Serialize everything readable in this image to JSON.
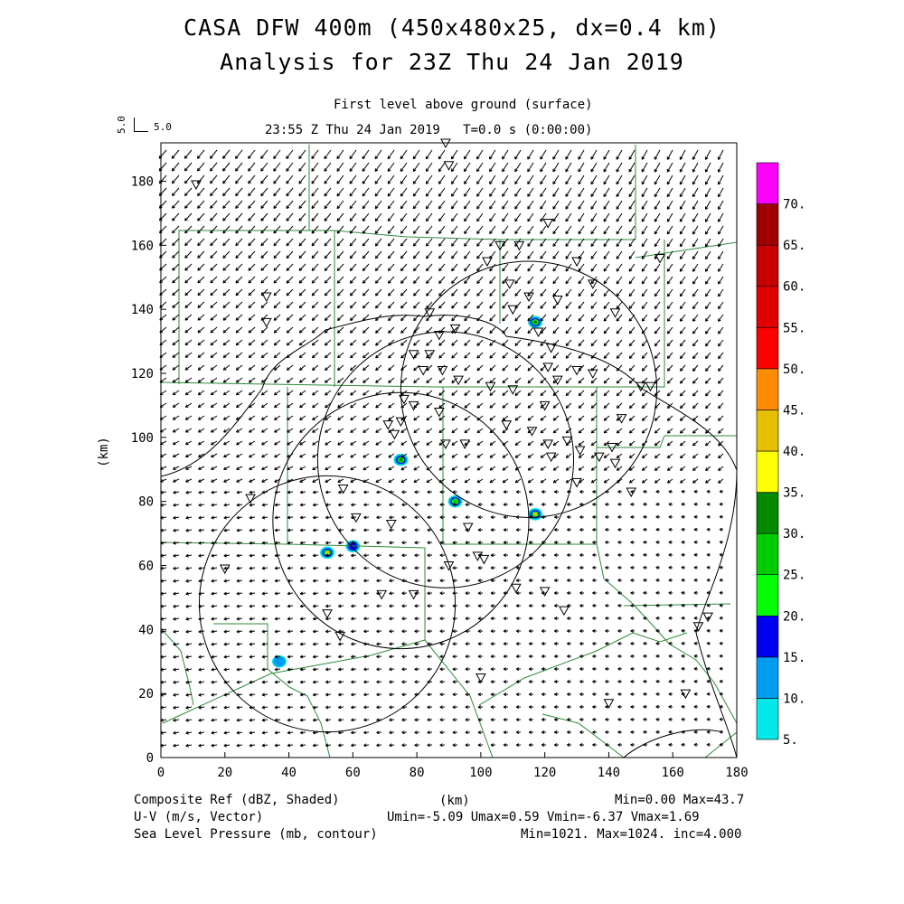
{
  "header": {
    "title_line1": "CASA DFW 400m (450x480x25, dx=0.4 km)",
    "title_line2": "Analysis for 23Z Thu 24 Jan 2019",
    "level_label": "First level above ground (surface)",
    "time_label": "23:55 Z Thu 24 Jan 2019   T=0.0 s (0:00:00)",
    "ref_vector_vert": "5.0",
    "ref_vector_horiz": "5.0"
  },
  "footer": {
    "field1": "Composite Ref (dBZ, Shaded)",
    "field1_unit": "(km)",
    "field1_stats": "Min=0.00 Max=43.7",
    "field2": "U-V (m/s, Vector)",
    "field2_stats": "Umin=-5.09 Umax=0.59 Vmin=-6.37 Vmax=1.69",
    "field3": "Sea Level Pressure (mb, contour)",
    "field3_stats": "Min=1021. Max=1024. inc=4.000"
  },
  "chart_data": {
    "type": "heatmap",
    "xlabel": "",
    "ylabel": "(km)",
    "xlim": [
      0,
      180
    ],
    "ylim": [
      0,
      192
    ],
    "x_ticks": [
      "0",
      "20",
      "40",
      "60",
      "80",
      "100",
      "120",
      "140",
      "160",
      "180"
    ],
    "y_ticks": [
      "0",
      "20",
      "40",
      "60",
      "80",
      "100",
      "120",
      "140",
      "160",
      "180"
    ],
    "colorbar": {
      "labels": [
        "5.",
        "10.",
        "15.",
        "20.",
        "25.",
        "30.",
        "35.",
        "40.",
        "45.",
        "50.",
        "55.",
        "60.",
        "65.",
        "70."
      ],
      "colors": [
        "#00e8e8",
        "#009cf0",
        "#0000f0",
        "#00ff00",
        "#00cc00",
        "#008800",
        "#ffff00",
        "#e6c000",
        "#ff8c00",
        "#ff0000",
        "#e00000",
        "#c80000",
        "#a00000",
        "#ff00ff"
      ]
    },
    "radar_rings": [
      {
        "cx": 115,
        "cy": 115,
        "r": 40
      },
      {
        "cx": 89,
        "cy": 93,
        "r": 40
      },
      {
        "cx": 75,
        "cy": 74,
        "r": 40
      },
      {
        "cx": 52,
        "cy": 48,
        "r": 40
      }
    ],
    "echoes": [
      {
        "x": 117,
        "y": 136,
        "dbz": 30
      },
      {
        "x": 75,
        "y": 93,
        "dbz": 30
      },
      {
        "x": 92,
        "y": 80,
        "dbz": 25
      },
      {
        "x": 117,
        "y": 76,
        "dbz": 40
      },
      {
        "x": 52,
        "y": 64,
        "dbz": 40
      },
      {
        "x": 60,
        "y": 66,
        "dbz": 15
      },
      {
        "x": 37,
        "y": 30,
        "dbz": 10
      }
    ],
    "stations": [
      [
        11,
        179
      ],
      [
        89,
        192
      ],
      [
        90,
        185
      ],
      [
        106,
        160
      ],
      [
        121,
        167
      ],
      [
        130,
        155
      ],
      [
        33,
        144
      ],
      [
        33,
        136
      ],
      [
        84,
        139
      ],
      [
        102,
        155
      ],
      [
        112,
        160
      ],
      [
        109,
        148
      ],
      [
        115,
        144
      ],
      [
        124,
        143
      ],
      [
        135,
        148
      ],
      [
        110,
        140
      ],
      [
        92,
        134
      ],
      [
        87,
        132
      ],
      [
        79,
        126
      ],
      [
        84,
        126
      ],
      [
        82,
        121
      ],
      [
        88,
        121
      ],
      [
        93,
        118
      ],
      [
        103,
        116
      ],
      [
        110,
        115
      ],
      [
        118,
        133
      ],
      [
        122,
        128
      ],
      [
        124,
        118
      ],
      [
        121,
        122
      ],
      [
        130,
        121
      ],
      [
        135,
        120
      ],
      [
        142,
        139
      ],
      [
        120,
        110
      ],
      [
        76,
        112
      ],
      [
        79,
        110
      ],
      [
        75,
        105
      ],
      [
        71,
        104
      ],
      [
        73,
        101
      ],
      [
        87,
        108
      ],
      [
        89,
        98
      ],
      [
        95,
        98
      ],
      [
        108,
        104
      ],
      [
        116,
        102
      ],
      [
        121,
        98
      ],
      [
        127,
        99
      ],
      [
        131,
        96
      ],
      [
        122,
        94
      ],
      [
        137,
        94
      ],
      [
        130,
        86
      ],
      [
        141,
        97
      ],
      [
        142,
        92
      ],
      [
        147,
        83
      ],
      [
        144,
        106
      ],
      [
        150,
        116
      ],
      [
        153,
        116
      ],
      [
        156,
        156
      ],
      [
        28,
        81
      ],
      [
        57,
        84
      ],
      [
        61,
        75
      ],
      [
        72,
        73
      ],
      [
        90,
        60
      ],
      [
        99,
        63
      ],
      [
        101,
        62
      ],
      [
        96,
        72
      ],
      [
        79,
        51
      ],
      [
        69,
        51
      ],
      [
        52,
        45
      ],
      [
        56,
        38
      ],
      [
        20,
        59
      ],
      [
        111,
        53
      ],
      [
        120,
        52
      ],
      [
        126,
        46
      ],
      [
        100,
        25
      ],
      [
        140,
        17
      ],
      [
        164,
        20
      ],
      [
        168,
        41
      ],
      [
        171,
        44
      ]
    ]
  }
}
